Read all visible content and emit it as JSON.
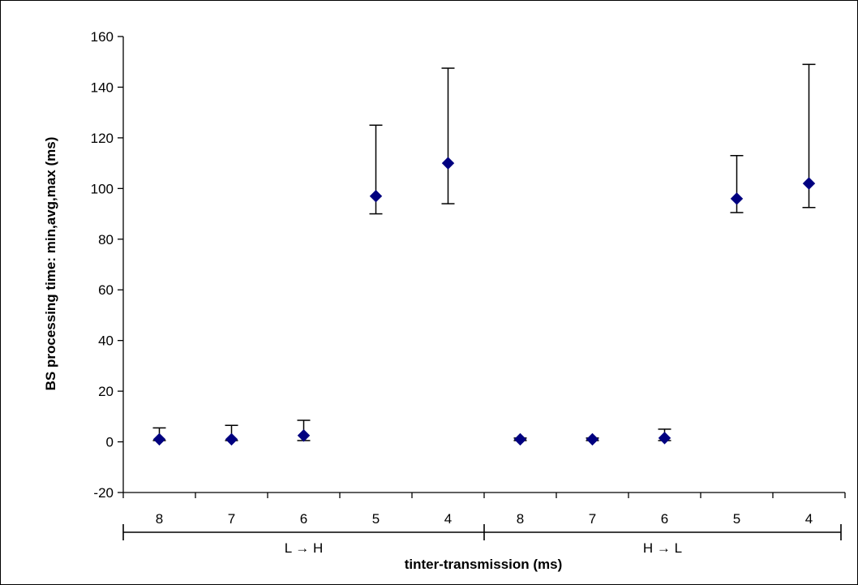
{
  "chart_data": {
    "type": "scatter",
    "xlabel": "tinter-transmission (ms)",
    "ylabel": "BS processing time: min,avg,max (ms)",
    "ylim": [
      -20,
      160
    ],
    "yticks": [
      -20,
      0,
      20,
      40,
      60,
      80,
      100,
      120,
      140,
      160
    ],
    "grid": false,
    "marker_color": "#000080",
    "groups": [
      {
        "label": "L → H",
        "categories": [
          "8",
          "7",
          "6",
          "5",
          "4"
        ],
        "avg": [
          1,
          1,
          2.5,
          97,
          110
        ],
        "min": [
          0.5,
          0.5,
          0.5,
          90,
          94
        ],
        "max": [
          5.5,
          6.5,
          8.5,
          125,
          147.5
        ]
      },
      {
        "label": "H → L",
        "categories": [
          "8",
          "7",
          "6",
          "5",
          "4"
        ],
        "avg": [
          1,
          1,
          1.5,
          96,
          102
        ],
        "min": [
          0.5,
          0.5,
          0.5,
          90.5,
          92.5
        ],
        "max": [
          1.5,
          1.5,
          5,
          113,
          149
        ]
      }
    ]
  }
}
